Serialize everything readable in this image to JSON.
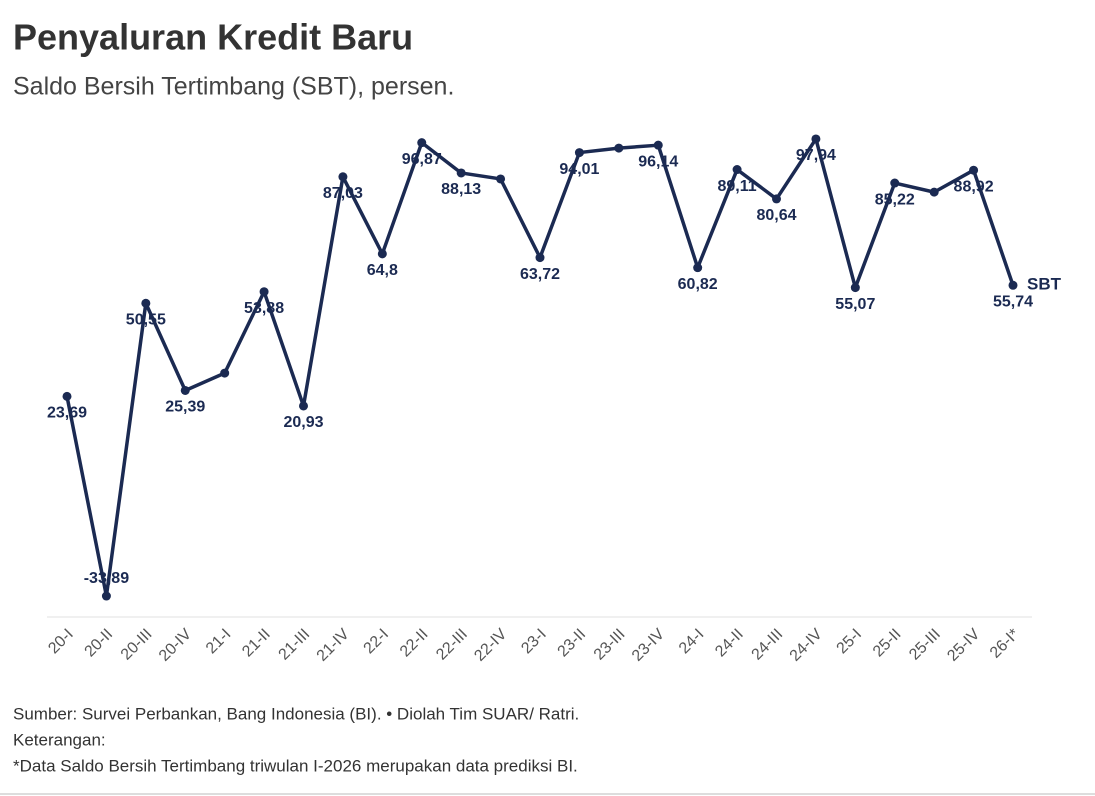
{
  "chart_data": {
    "type": "line",
    "title": "Penyaluran Kredit Baru",
    "subtitle": "Saldo Bersih Tertimbang (SBT), persen.",
    "categories": [
      "20-I",
      "20-II",
      "20-III",
      "20-IV",
      "21-I",
      "21-II",
      "21-III",
      "21-IV",
      "22-I",
      "22-II",
      "22-III",
      "22-IV",
      "23-I",
      "23-II",
      "23-III",
      "23-IV",
      "24-I",
      "24-II",
      "24-III",
      "24-IV",
      "25-I",
      "25-II",
      "25-III",
      "25-IV",
      "26-I*"
    ],
    "series": [
      {
        "name": "SBT",
        "color": "#1b2a52",
        "values": [
          23.69,
          -33.89,
          50.55,
          25.39,
          30.4,
          53.88,
          20.93,
          87.03,
          64.8,
          96.87,
          88.13,
          86.4,
          63.72,
          94.01,
          95.3,
          96.14,
          60.82,
          89.11,
          80.64,
          97.94,
          55.07,
          85.22,
          82.6,
          88.92,
          55.74
        ],
        "value_labels": [
          "23,69",
          "-33,89",
          "50,55",
          "25,39",
          null,
          "53,88",
          "20,93",
          "87,03",
          "64,8",
          "96,87",
          "88,13",
          null,
          "63,72",
          "94,01",
          null,
          "96,14",
          "60,82",
          "89,11",
          "80,64",
          "97,94",
          "55,07",
          "85,22",
          null,
          "88,92",
          "55,74"
        ]
      }
    ],
    "ylim": [
      -40,
      100
    ],
    "source": "Sumber: Survei Perbankan, Bang Indonesia (BI). • Diolah Tim SUAR/ Ratri.",
    "note_heading": "Keterangan:",
    "note": "*Data Saldo Bersih Tertimbang triwulan I-2026 merupakan data prediksi BI."
  }
}
